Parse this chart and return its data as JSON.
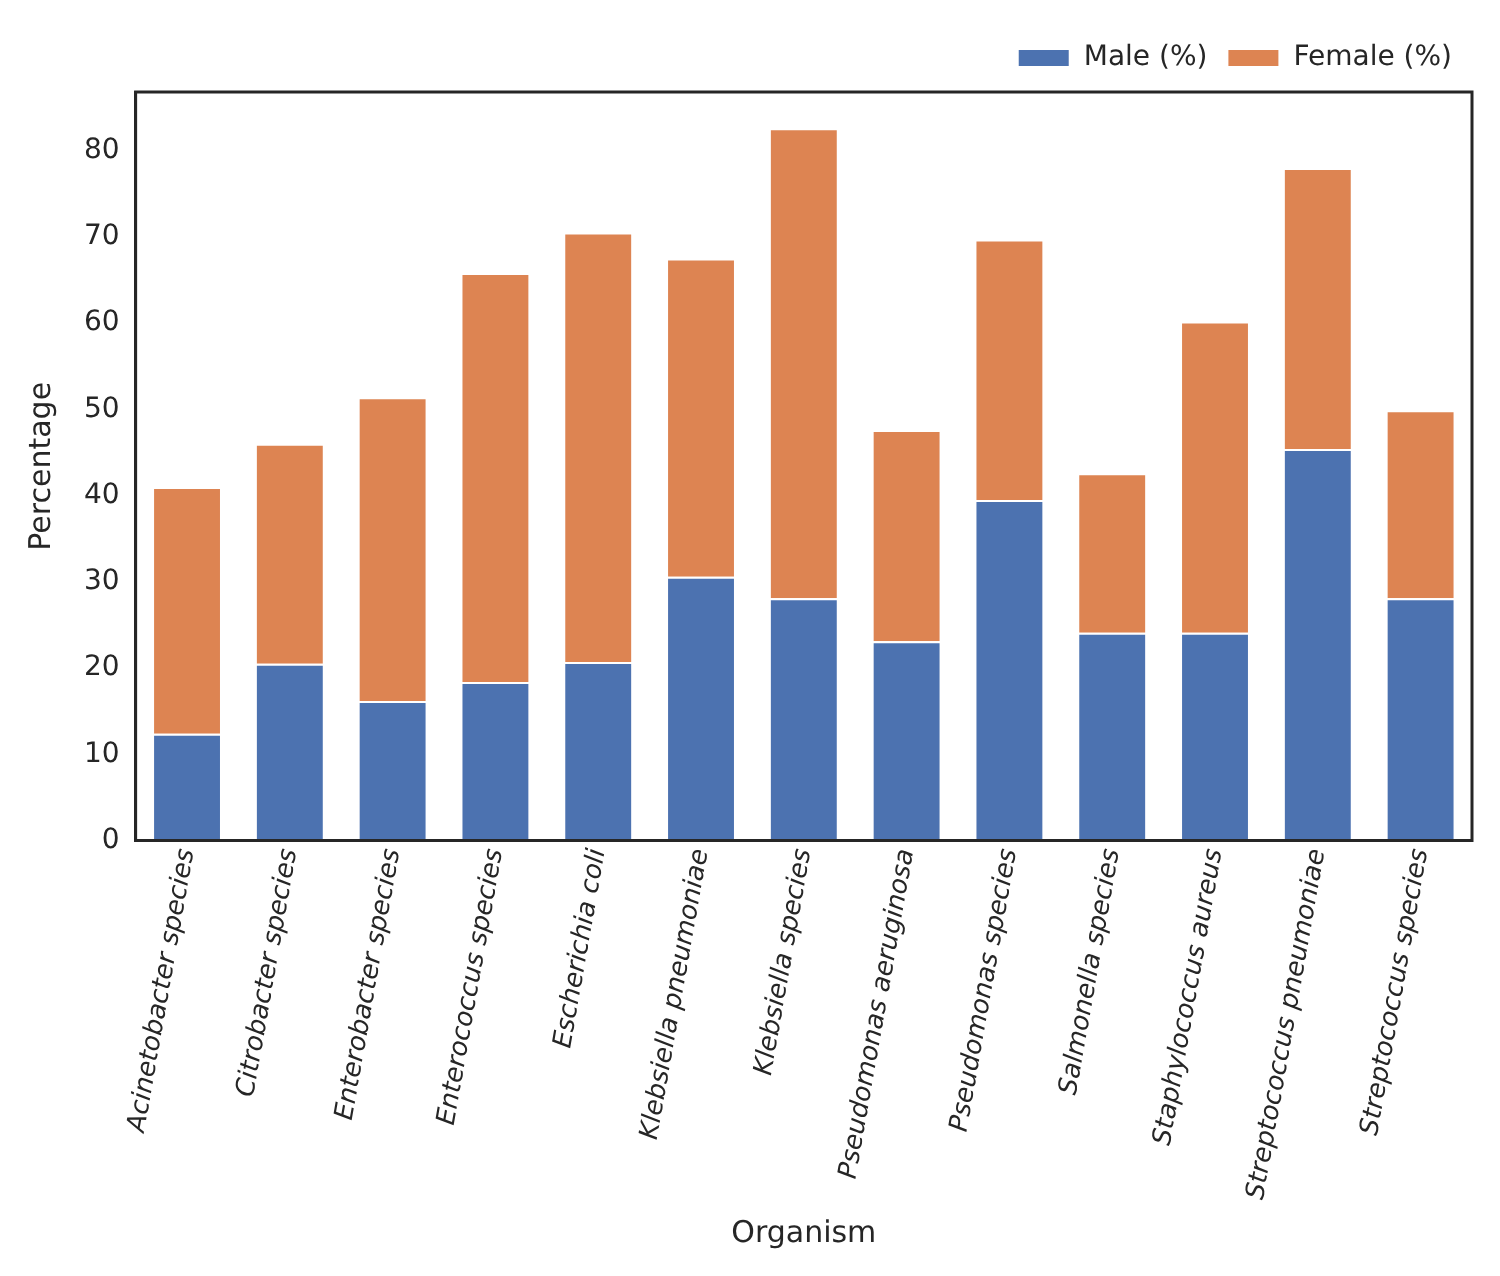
{
  "chart_data": {
    "type": "bar",
    "stacked": true,
    "xlabel": "Organism",
    "ylabel": "Percentage",
    "categories": [
      "Acinetobacter species",
      "Citrobacter species",
      "Enterobacter species",
      "Enterococcus species",
      "Escherichia coli",
      "Klebsiella pneumoniae",
      "Klebsiella species",
      "Pseudomonas aeruginosa",
      "Pseudomonas species",
      "Salmonella species",
      "Staphylococcus aureus",
      "Streptococcus pneumoniae",
      "Streptococcus species"
    ],
    "series": [
      {
        "name": "Male (%)",
        "color": "#4c72b0",
        "values": [
          12.4,
          20.5,
          16.2,
          18.4,
          20.7,
          30.6,
          28.1,
          23.1,
          39.5,
          24.1,
          24.1,
          45.4,
          28.1
        ]
      },
      {
        "name": "Female (%)",
        "color": "#dd8452",
        "values": [
          28.6,
          25.5,
          35.2,
          47.4,
          49.8,
          36.9,
          54.5,
          24.5,
          30.2,
          18.5,
          36.1,
          32.6,
          21.8
        ]
      }
    ],
    "ylim": [
      0,
      86.8
    ],
    "yticks": [
      0,
      10,
      20,
      30,
      40,
      50,
      60,
      70,
      80
    ],
    "grid": false,
    "legend": "top right"
  }
}
